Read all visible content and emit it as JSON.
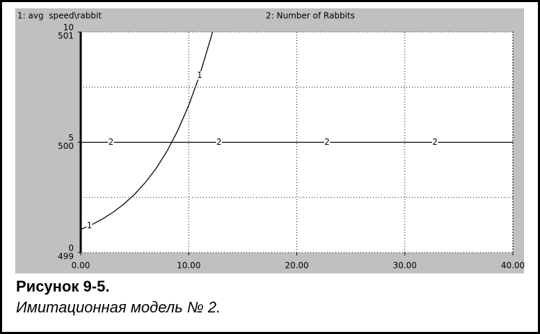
{
  "chart_data": {
    "type": "line",
    "caption_title": "Рисунок 9-5.",
    "caption_text": "Имитационная модель № 2.",
    "x": [
      0,
      1,
      2,
      3,
      4,
      5,
      6,
      7,
      8,
      9,
      10,
      11,
      12,
      12.2,
      40
    ],
    "series": [
      {
        "name": "1: avg  speed\\rabbit",
        "marker": "1",
        "color": "#000000",
        "values": [
          1.05,
          1.26,
          1.52,
          1.83,
          2.2,
          2.65,
          3.19,
          3.83,
          4.61,
          5.55,
          6.68,
          8.03,
          9.66,
          10.0,
          null
        ]
      },
      {
        "name": "2: Number of Rabbits",
        "marker": "2",
        "color": "#000000",
        "axis": "y2",
        "values": [
          500,
          500,
          500,
          500,
          500,
          500,
          500,
          500,
          500,
          500,
          500,
          500,
          500,
          500,
          500
        ]
      }
    ],
    "xlim": [
      0,
      40
    ],
    "xticks": [
      {
        "value": 0,
        "label": "0.00"
      },
      {
        "value": 10,
        "label": "10.00"
      },
      {
        "value": 20,
        "label": "20.00"
      },
      {
        "value": 30,
        "label": "30.00"
      },
      {
        "value": 40,
        "label": "40.00"
      }
    ],
    "ylim": [
      0,
      10
    ],
    "yticks": [
      0,
      5,
      10
    ],
    "y2lim": [
      499,
      501
    ],
    "y2ticks": [
      499,
      500,
      501
    ],
    "grid": true
  }
}
